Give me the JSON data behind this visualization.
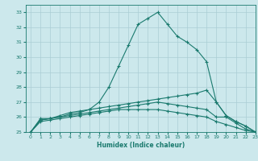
{
  "title": "",
  "xlabel": "Humidex (Indice chaleur)",
  "xlim": [
    -0.5,
    23
  ],
  "ylim": [
    25,
    33.5
  ],
  "yticks": [
    25,
    26,
    27,
    28,
    29,
    30,
    31,
    32,
    33
  ],
  "xticks": [
    0,
    1,
    2,
    3,
    4,
    5,
    6,
    7,
    8,
    9,
    10,
    11,
    12,
    13,
    14,
    15,
    16,
    17,
    18,
    19,
    20,
    21,
    22,
    23
  ],
  "background_color": "#cce8ec",
  "line_color": "#1a7a6e",
  "grid_color": "#aacdd4",
  "lines": [
    [
      25.0,
      25.9,
      25.9,
      26.1,
      26.3,
      26.4,
      26.5,
      27.0,
      28.0,
      29.4,
      30.8,
      32.2,
      32.6,
      33.0,
      32.2,
      31.4,
      31.0,
      30.5,
      29.7,
      27.0,
      26.1,
      25.7,
      25.4,
      25.0
    ],
    [
      25.0,
      25.8,
      25.9,
      26.0,
      26.2,
      26.3,
      26.5,
      26.6,
      26.7,
      26.8,
      26.9,
      27.0,
      27.1,
      27.2,
      27.3,
      27.4,
      27.5,
      27.6,
      27.8,
      27.0,
      26.1,
      25.7,
      25.4,
      25.0
    ],
    [
      25.0,
      25.8,
      25.9,
      26.0,
      26.1,
      26.2,
      26.3,
      26.4,
      26.5,
      26.6,
      26.7,
      26.8,
      26.9,
      27.0,
      26.9,
      26.8,
      26.7,
      26.6,
      26.5,
      26.0,
      26.0,
      25.6,
      25.2,
      25.0
    ],
    [
      25.0,
      25.7,
      25.8,
      25.9,
      26.0,
      26.1,
      26.2,
      26.3,
      26.4,
      26.5,
      26.5,
      26.5,
      26.5,
      26.5,
      26.4,
      26.3,
      26.2,
      26.1,
      26.0,
      25.7,
      25.5,
      25.3,
      25.1,
      25.0
    ]
  ]
}
